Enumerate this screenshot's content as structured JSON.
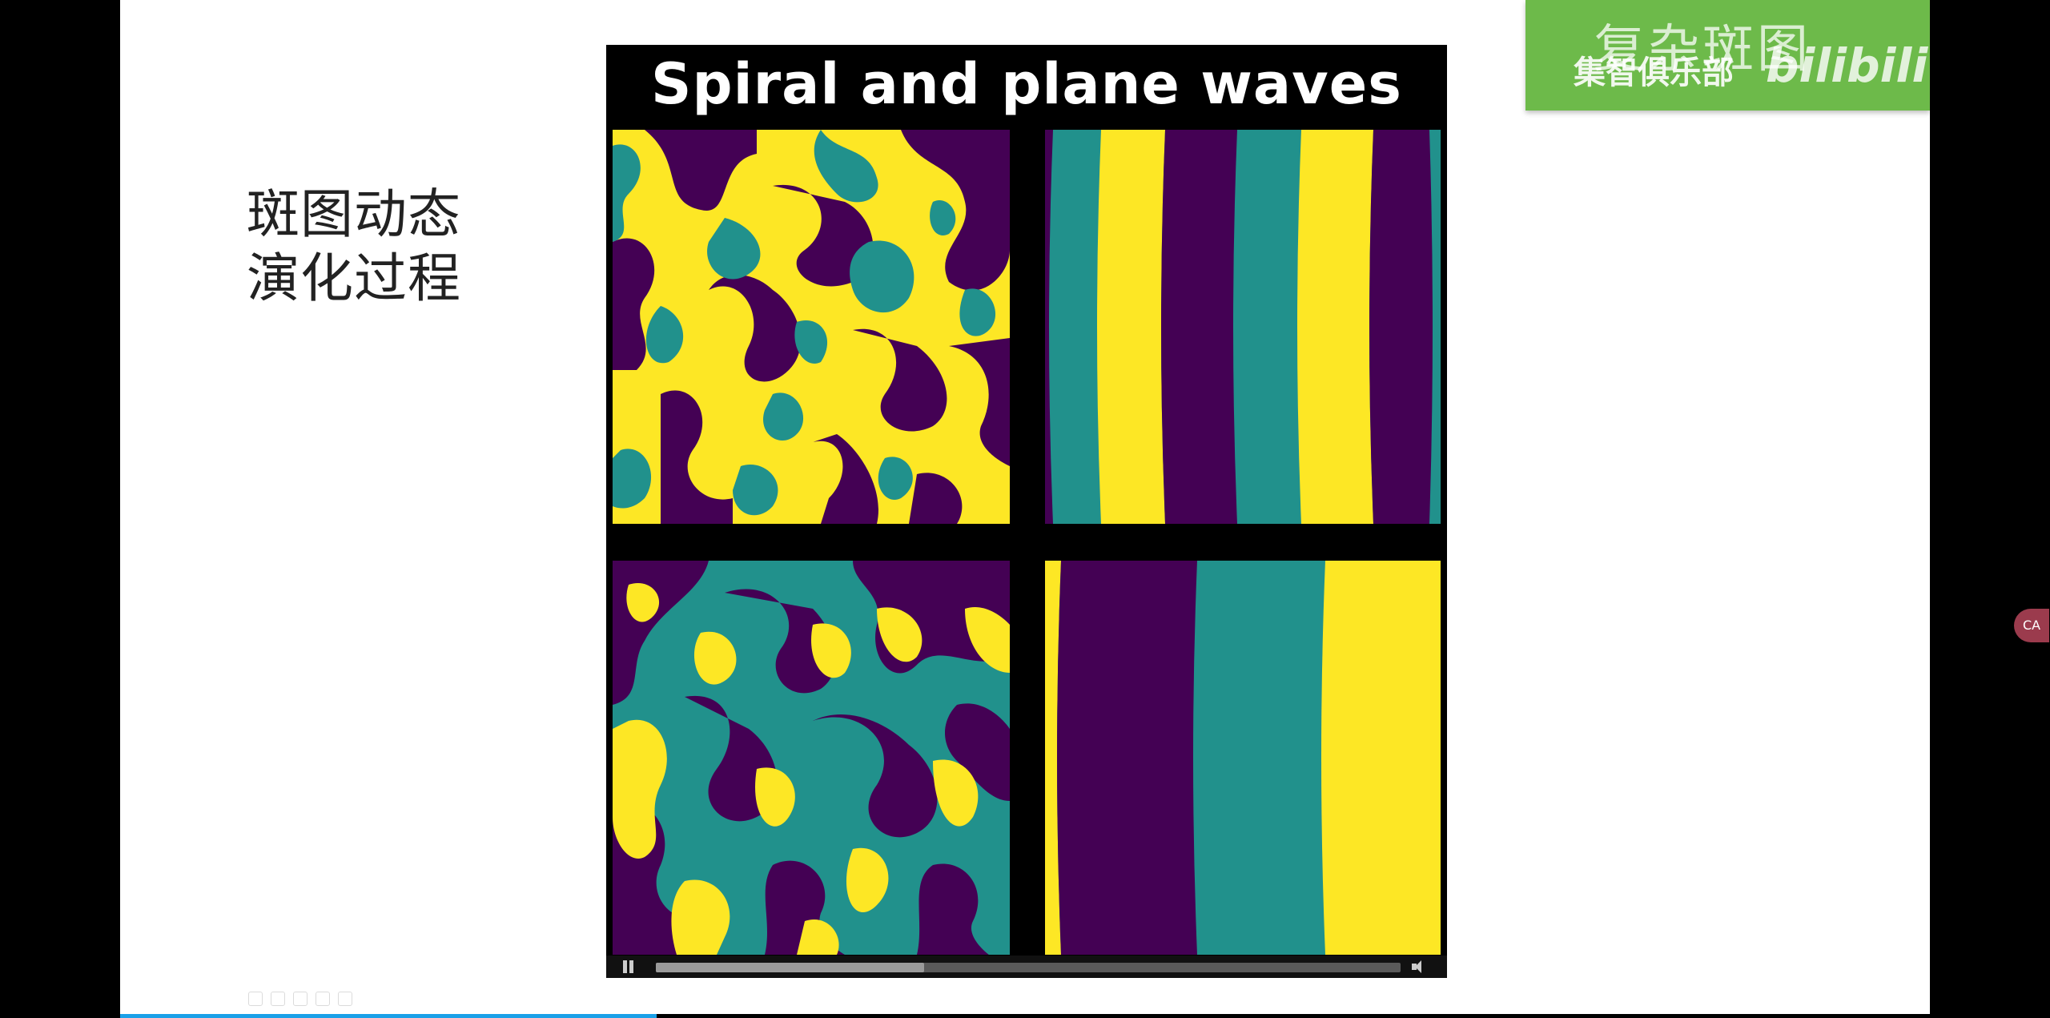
{
  "slide": {
    "heading_lines": [
      "斑图动态",
      "演化过程"
    ]
  },
  "video": {
    "title": "Spiral and plane waves",
    "progress": 0.36,
    "colors": {
      "yellow": "#fde725",
      "teal": "#21918c",
      "purple": "#440154"
    }
  },
  "watermark": {
    "title": "复杂斑图",
    "subtitle": "集智俱乐部",
    "logo": "bilibili"
  },
  "side_widget": {
    "label": "CA"
  },
  "icons": [
    "pause-icon",
    "volume-icon",
    "bilibili-logo",
    "toolbar-icons"
  ]
}
